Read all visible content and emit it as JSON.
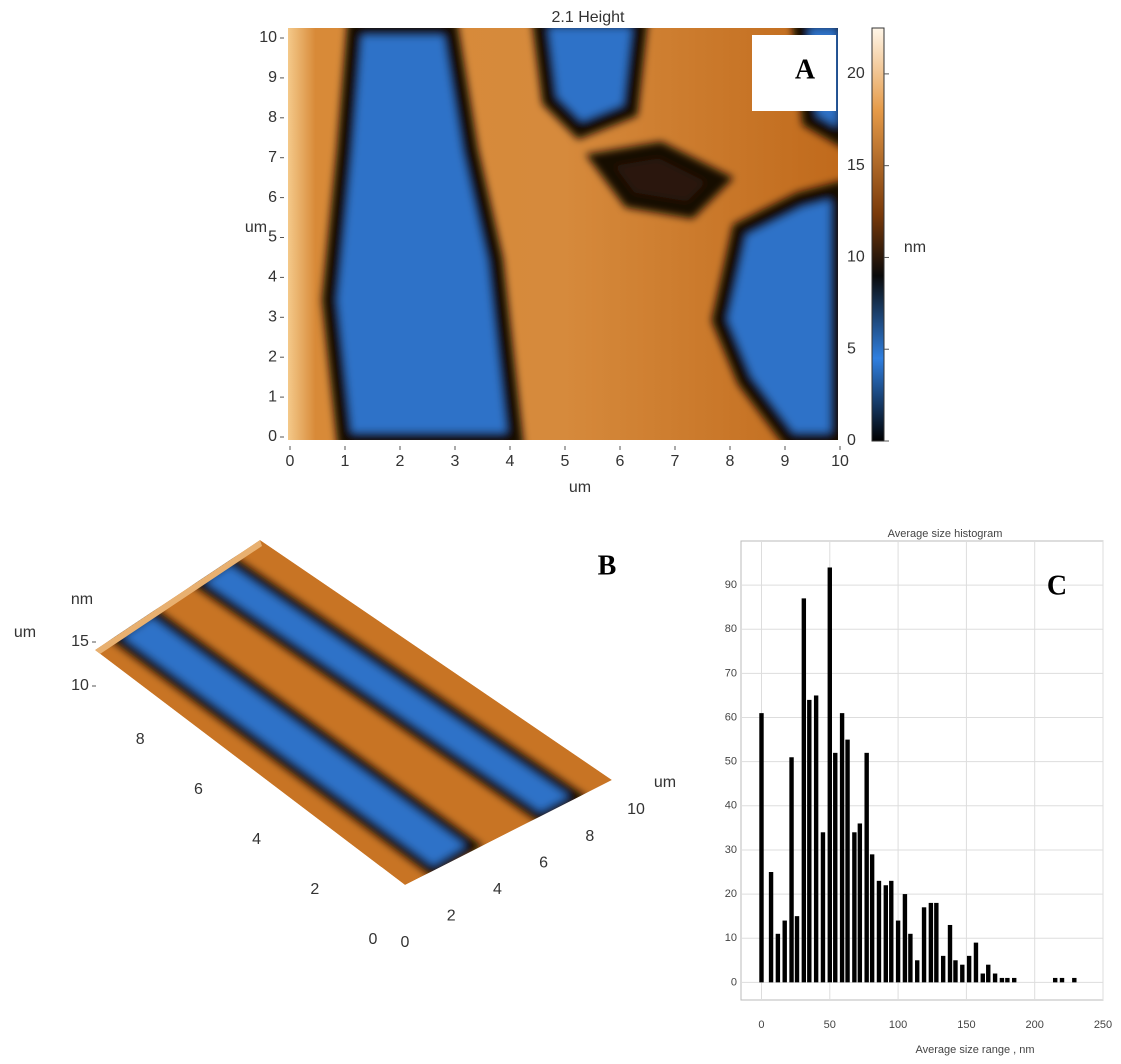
{
  "chart_data": [
    {
      "type": "heatmap",
      "title": "2.1 Height",
      "panel_label": "A",
      "xlabel": "um",
      "ylabel": "um",
      "colorbar_label": "nm",
      "xlim": [
        0,
        10
      ],
      "ylim": [
        0,
        10
      ],
      "xticks": [
        0,
        1,
        2,
        3,
        4,
        5,
        6,
        7,
        8,
        9,
        10
      ],
      "yticks": [
        0,
        1,
        2,
        3,
        4,
        5,
        6,
        7,
        8,
        9,
        10
      ],
      "clim": [
        0,
        22.5
      ],
      "cticks": [
        0,
        5,
        10,
        15,
        20
      ]
    },
    {
      "type": "surface",
      "panel_label": "B",
      "zlabel": "nm",
      "ylabel": "um",
      "xlabel": "um",
      "zticks": [
        10,
        15
      ],
      "yticks": [
        0,
        2,
        4,
        6,
        8
      ],
      "xticks": [
        0,
        2,
        4,
        6,
        8,
        10
      ]
    },
    {
      "type": "bar",
      "title": "Average size histogram",
      "panel_label": "C",
      "xlabel": "Average size range , nm",
      "color": "#000000",
      "grid": true,
      "x": [
        0,
        7,
        12,
        17,
        22,
        26,
        31,
        35,
        40,
        45,
        50,
        54,
        59,
        63,
        68,
        72,
        77,
        81,
        86,
        91,
        95,
        100,
        105,
        109,
        114,
        119,
        124,
        128,
        133,
        138,
        142,
        147,
        152,
        157,
        162,
        166,
        171,
        176,
        180,
        185,
        215,
        220,
        229
      ],
      "values": [
        61,
        25,
        11,
        14,
        51,
        15,
        87,
        64,
        65,
        34,
        94,
        52,
        61,
        55,
        34,
        36,
        52,
        29,
        23,
        22,
        23,
        14,
        20,
        11,
        5,
        17,
        18,
        18,
        6,
        13,
        5,
        4,
        6,
        9,
        2,
        4,
        2,
        1,
        1,
        1,
        1,
        1,
        1
      ],
      "xlim": [
        -15,
        250
      ],
      "ylim": [
        -4,
        100
      ],
      "xticks": [
        0,
        50,
        100,
        150,
        200,
        250
      ],
      "yticks": [
        0,
        10,
        20,
        30,
        40,
        50,
        60,
        70,
        80,
        90
      ]
    }
  ]
}
